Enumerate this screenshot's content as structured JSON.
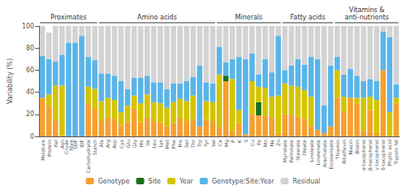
{
  "chart_data": {
    "type": "bar",
    "stacked": true,
    "categories": [
      "Moisture",
      "Protein",
      "Fat",
      "Ash",
      "Crude\nfibre",
      "SDF",
      "IDF",
      "Carbohydrate",
      "Starch",
      "Ala",
      "Arg",
      "Asp",
      "Cys",
      "Glu",
      "Gly",
      "His",
      "Ile",
      "Leu",
      "Lys",
      "Met",
      "Phe",
      "Pro",
      "Ser",
      "Thr",
      "Trp",
      "Tyr",
      "Val",
      "Ca",
      "Mg",
      "P",
      "K",
      "S",
      "Cu",
      "Fe",
      "Mn",
      "Na",
      "Zn",
      "Myristate",
      "Palmitate",
      "Stearate",
      "Oleate",
      "Linoleate",
      "Linolenate",
      "Arachidiate",
      "Eicosanoate",
      "Thiamin",
      "Riboflavin",
      "Niacin",
      "Biotin",
      "α-tocopherol",
      "β-tocopherol",
      "γ-tocopherol",
      "δ-tocopherol",
      "Phytic acid",
      "Trypsin IW"
    ],
    "series": [
      {
        "name": "Genotype",
        "color": "#f5a030",
        "values": [
          35,
          28,
          14,
          1,
          0,
          0,
          0,
          30,
          25,
          14,
          17,
          16,
          10,
          13,
          25,
          13,
          17,
          14,
          13,
          9,
          12,
          17,
          14,
          15,
          9,
          15,
          14,
          8,
          50,
          5,
          12,
          2,
          20,
          19,
          19,
          17,
          3,
          20,
          20,
          18,
          16,
          9,
          6,
          3,
          9,
          35,
          22,
          35,
          30,
          5,
          24,
          3,
          60,
          0,
          30
        ]
      },
      {
        "name": "Site",
        "color": "#1a6e1a",
        "values": [
          0,
          0,
          0,
          0,
          0,
          0,
          0,
          0,
          0,
          0,
          0,
          0,
          0,
          0,
          0,
          0,
          0,
          0,
          0,
          0,
          0,
          0,
          0,
          0,
          0,
          0,
          0,
          0,
          5,
          0,
          0,
          0,
          0,
          12,
          0,
          0,
          0,
          0,
          0,
          0,
          0,
          0,
          0,
          0,
          0,
          0,
          0,
          0,
          0,
          0,
          0,
          0,
          0,
          0,
          0
        ]
      },
      {
        "name": "Year",
        "color": "#d4c400",
        "values": [
          0,
          10,
          32,
          45,
          0,
          0,
          0,
          15,
          18,
          18,
          18,
          17,
          12,
          15,
          12,
          17,
          21,
          17,
          17,
          17,
          19,
          17,
          18,
          22,
          0,
          17,
          17,
          48,
          0,
          47,
          12,
          0,
          30,
          14,
          25,
          19,
          34,
          28,
          26,
          27,
          26,
          27,
          0,
          0,
          0,
          25,
          14,
          0,
          5,
          30,
          12,
          30,
          0,
          22,
          5
        ]
      },
      {
        "name": "Genotype:Site:Year",
        "color": "#5ab4e8",
        "values": [
          38,
          32,
          22,
          28,
          85,
          85,
          91,
          27,
          26,
          25,
          22,
          22,
          28,
          15,
          16,
          23,
          17,
          18,
          19,
          17,
          17,
          14,
          18,
          17,
          55,
          17,
          17,
          25,
          12,
          18,
          48,
          68,
          25,
          11,
          26,
          22,
          54,
          12,
          18,
          25,
          23,
          36,
          64,
          25,
          55,
          12,
          20,
          26,
          20,
          15,
          16,
          17,
          35,
          68,
          12
        ]
      },
      {
        "name": "Residual",
        "color": "#d3d3d3",
        "values": [
          27,
          24,
          32,
          26,
          15,
          15,
          9,
          28,
          31,
          43,
          43,
          45,
          50,
          57,
          47,
          47,
          45,
          51,
          51,
          57,
          52,
          52,
          50,
          46,
          36,
          51,
          52,
          19,
          33,
          30,
          28,
          30,
          25,
          44,
          30,
          42,
          9,
          40,
          36,
          30,
          35,
          28,
          30,
          72,
          36,
          28,
          44,
          39,
          45,
          50,
          48,
          50,
          5,
          10,
          53
        ]
      }
    ],
    "ylabel": "Variability (%)",
    "ylim": [
      0,
      100
    ],
    "yticks": [
      0,
      20,
      40,
      60,
      80,
      100
    ],
    "grid": false,
    "legend": "bottom",
    "groups": [
      {
        "label": "Proximates",
        "from": "Moisture",
        "to": "Starch"
      },
      {
        "label": "Amino acids",
        "from": "Ala",
        "to": "Val"
      },
      {
        "label": "Minerals",
        "from": "Ca",
        "to": "Zn"
      },
      {
        "label": "Fatty acids",
        "from": "Myristate",
        "to": "Eicosanoate"
      },
      {
        "label": "Vitamins &\nanti-nutrients",
        "from": "Thiamin",
        "to": "Trypsin IW"
      }
    ]
  }
}
